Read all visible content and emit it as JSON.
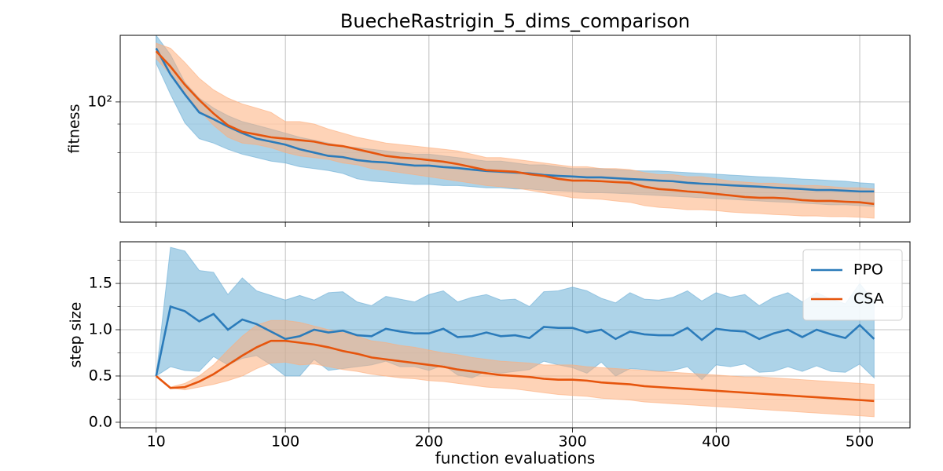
{
  "chart_data": [
    {
      "type": "line",
      "title": "BuecheRastrigin_5_dims_comparison",
      "ylabel": "fitness",
      "x": [
        10,
        20,
        30,
        40,
        50,
        60,
        70,
        80,
        90,
        100,
        110,
        120,
        130,
        140,
        150,
        160,
        170,
        180,
        190,
        200,
        210,
        220,
        230,
        240,
        250,
        260,
        270,
        280,
        290,
        300,
        310,
        320,
        330,
        340,
        350,
        360,
        370,
        380,
        390,
        400,
        410,
        420,
        430,
        440,
        450,
        460,
        470,
        480,
        490,
        500,
        510
      ],
      "xlim": [
        -15,
        535
      ],
      "xticks": [
        10,
        100,
        200,
        300,
        400,
        500
      ],
      "ylim": [
        29.7,
        196
      ],
      "log_y": true,
      "yticks": [
        {
          "value": 100,
          "label": "10²"
        }
      ],
      "yminorticks": [
        40,
        60,
        80
      ],
      "grid": true,
      "series": [
        {
          "color": "#2b7bba",
          "band_color": "#6aaed6",
          "values": [
            172,
            132,
            108,
            90,
            84,
            78,
            73,
            69,
            67,
            65,
            62,
            60,
            58,
            57.3,
            55.6,
            54.7,
            54.3,
            53.4,
            52.6,
            52.6,
            51.8,
            51.3,
            50.5,
            49.8,
            49.4,
            49,
            48.6,
            47.8,
            47.4,
            47.1,
            46.7,
            46.7,
            46.3,
            45.9,
            45.6,
            45.2,
            44.9,
            44.2,
            43.8,
            43.5,
            43.1,
            42.8,
            42.5,
            42.1,
            41.8,
            41.5,
            41.1,
            41.1,
            40.8,
            40.5,
            40.5
          ],
          "lower": [
            148,
            108,
            81,
            69,
            66,
            62,
            59,
            57,
            55,
            54,
            52,
            51,
            50,
            48.6,
            46,
            45,
            44.5,
            44,
            43.5,
            43.5,
            43,
            43,
            42.5,
            42,
            42,
            41.5,
            41.5,
            41,
            40.8,
            40.5,
            40,
            40,
            39.8,
            39.5,
            39.2,
            38.9,
            38.6,
            38.3,
            38,
            37.7,
            37.4,
            37.1,
            36.8,
            36.5,
            36.3,
            36,
            35.7,
            35.4,
            35.4,
            35.1,
            34.8
          ],
          "upper": [
            196,
            161,
            122,
            104,
            94,
            87,
            82,
            79,
            76,
            73,
            70,
            68,
            66,
            64,
            63,
            62,
            61,
            60,
            59,
            59,
            58,
            57,
            56,
            55,
            55,
            54,
            53,
            53,
            52,
            51,
            51,
            51,
            50.5,
            50,
            49.8,
            49.8,
            49.4,
            49,
            48.6,
            48.2,
            47.8,
            47.4,
            47,
            46.7,
            46.3,
            45.9,
            45.6,
            45.2,
            44.9,
            44.2,
            43.8
          ]
        },
        {
          "color": "#e6550d",
          "band_color": "#fdae7b",
          "values": [
            167,
            143,
            119,
            102,
            89,
            79,
            74,
            72,
            70,
            69,
            68,
            67,
            65,
            64,
            62,
            60,
            58,
            57,
            56.5,
            55.6,
            54.7,
            53.4,
            51.8,
            50.2,
            49.8,
            49.4,
            48.2,
            47.4,
            46,
            45.2,
            45.2,
            44.9,
            44.5,
            44.2,
            42.5,
            41.5,
            41.1,
            40.5,
            40.1,
            39.5,
            38.9,
            38.3,
            38,
            38,
            37.7,
            37.1,
            36.8,
            36.8,
            36.5,
            36.3,
            35.7
          ],
          "lower": [
            155,
            132,
            108,
            92,
            79,
            70,
            66,
            65,
            63,
            60,
            58,
            57,
            56,
            54,
            53,
            51,
            50,
            49,
            48,
            47,
            46,
            45,
            44,
            43,
            42.5,
            42,
            41,
            40,
            39,
            38,
            37.7,
            37.4,
            36.8,
            36.3,
            35.1,
            34.5,
            34.2,
            33.7,
            33.7,
            33.4,
            32.9,
            32.6,
            32.4,
            32.1,
            31.9,
            31.6,
            31.6,
            31.4,
            31.4,
            31.2,
            30.9
          ],
          "upper": [
            181,
            172,
            149,
            127,
            113,
            104,
            98,
            94,
            90,
            82,
            82,
            80,
            76,
            73,
            70,
            68,
            66,
            65,
            64,
            63,
            62,
            61,
            59,
            57,
            57,
            56,
            55,
            54,
            53,
            52,
            52,
            51,
            51,
            50.5,
            49,
            48,
            48,
            47,
            47,
            46,
            45,
            44.5,
            44,
            44,
            43.5,
            43,
            43,
            42.5,
            42,
            42,
            41.5
          ]
        }
      ]
    },
    {
      "type": "line",
      "ylabel": "step size",
      "xlabel": "function evaluations",
      "x": [
        10,
        20,
        30,
        40,
        50,
        60,
        70,
        80,
        90,
        100,
        110,
        120,
        130,
        140,
        150,
        160,
        170,
        180,
        190,
        200,
        210,
        220,
        230,
        240,
        250,
        260,
        270,
        280,
        290,
        300,
        310,
        320,
        330,
        340,
        350,
        360,
        370,
        380,
        390,
        400,
        410,
        420,
        430,
        440,
        450,
        460,
        470,
        480,
        490,
        500,
        510
      ],
      "xlim": [
        -15,
        535
      ],
      "xticks": [
        10,
        100,
        200,
        300,
        400,
        500
      ],
      "ylim": [
        -0.06,
        1.95
      ],
      "yticks": [
        {
          "value": 0,
          "label": "0.0"
        },
        {
          "value": 0.5,
          "label": "0.5"
        },
        {
          "value": 1,
          "label": "1.0"
        },
        {
          "value": 1.5,
          "label": "1.5"
        }
      ],
      "yminorticks": [
        0.25,
        0.75,
        1.25,
        1.75
      ],
      "grid": true,
      "legend": "upper right",
      "series": [
        {
          "name": "PPO",
          "color": "#2b7bba",
          "band_color": "#6aaed6",
          "values": [
            0.5,
            1.25,
            1.2,
            1.09,
            1.17,
            1.0,
            1.11,
            1.06,
            0.98,
            0.9,
            0.93,
            1.0,
            0.97,
            0.99,
            0.94,
            0.93,
            1.01,
            0.98,
            0.96,
            0.96,
            1.01,
            0.92,
            0.93,
            0.97,
            0.93,
            0.94,
            0.91,
            1.03,
            1.02,
            1.02,
            0.97,
            1.0,
            0.9,
            0.98,
            0.95,
            0.94,
            0.94,
            1.02,
            0.89,
            1.01,
            0.99,
            0.98,
            0.9,
            0.96,
            1.0,
            0.92,
            1.0,
            0.95,
            0.91,
            1.05,
            0.9
          ],
          "lower": [
            0.5,
            0.6,
            0.56,
            0.55,
            0.71,
            0.62,
            0.69,
            0.72,
            0.62,
            0.5,
            0.5,
            0.68,
            0.56,
            0.58,
            0.6,
            0.62,
            0.66,
            0.6,
            0.6,
            0.56,
            0.62,
            0.51,
            0.48,
            0.55,
            0.53,
            0.55,
            0.57,
            0.66,
            0.62,
            0.59,
            0.53,
            0.65,
            0.5,
            0.58,
            0.57,
            0.55,
            0.56,
            0.6,
            0.46,
            0.62,
            0.6,
            0.63,
            0.54,
            0.55,
            0.6,
            0.55,
            0.61,
            0.55,
            0.54,
            0.63,
            0.48
          ],
          "upper": [
            0.5,
            1.89,
            1.85,
            1.64,
            1.62,
            1.38,
            1.56,
            1.42,
            1.37,
            1.32,
            1.37,
            1.32,
            1.4,
            1.41,
            1.3,
            1.26,
            1.36,
            1.33,
            1.3,
            1.38,
            1.42,
            1.3,
            1.35,
            1.38,
            1.32,
            1.33,
            1.25,
            1.41,
            1.42,
            1.46,
            1.42,
            1.34,
            1.29,
            1.4,
            1.33,
            1.32,
            1.35,
            1.42,
            1.31,
            1.4,
            1.35,
            1.38,
            1.26,
            1.35,
            1.4,
            1.3,
            1.4,
            1.33,
            1.28,
            1.5,
            1.3
          ]
        },
        {
          "name": "CSA",
          "color": "#e6550d",
          "band_color": "#fdae7b",
          "values": [
            0.5,
            0.37,
            0.38,
            0.44,
            0.52,
            0.62,
            0.72,
            0.81,
            0.88,
            0.88,
            0.86,
            0.84,
            0.81,
            0.77,
            0.74,
            0.7,
            0.68,
            0.66,
            0.64,
            0.62,
            0.6,
            0.57,
            0.55,
            0.53,
            0.51,
            0.5,
            0.49,
            0.47,
            0.46,
            0.46,
            0.45,
            0.43,
            0.42,
            0.41,
            0.39,
            0.38,
            0.37,
            0.36,
            0.35,
            0.34,
            0.33,
            0.32,
            0.31,
            0.3,
            0.29,
            0.28,
            0.27,
            0.26,
            0.25,
            0.24,
            0.23
          ],
          "lower": [
            0.5,
            0.37,
            0.35,
            0.38,
            0.41,
            0.45,
            0.5,
            0.58,
            0.64,
            0.65,
            0.62,
            0.63,
            0.6,
            0.57,
            0.55,
            0.52,
            0.5,
            0.48,
            0.47,
            0.45,
            0.44,
            0.42,
            0.4,
            0.38,
            0.37,
            0.36,
            0.34,
            0.32,
            0.3,
            0.29,
            0.28,
            0.26,
            0.25,
            0.24,
            0.22,
            0.21,
            0.2,
            0.19,
            0.18,
            0.17,
            0.16,
            0.15,
            0.14,
            0.13,
            0.12,
            0.11,
            0.1,
            0.09,
            0.08,
            0.07,
            0.06
          ],
          "upper": [
            0.5,
            0.38,
            0.42,
            0.5,
            0.62,
            0.78,
            0.93,
            1.05,
            1.1,
            1.1,
            1.08,
            1.04,
            1.0,
            0.97,
            0.93,
            0.88,
            0.86,
            0.83,
            0.81,
            0.78,
            0.75,
            0.73,
            0.7,
            0.68,
            0.66,
            0.65,
            0.64,
            0.62,
            0.62,
            0.62,
            0.6,
            0.59,
            0.58,
            0.57,
            0.56,
            0.55,
            0.54,
            0.53,
            0.52,
            0.51,
            0.5,
            0.49,
            0.49,
            0.48,
            0.47,
            0.46,
            0.45,
            0.44,
            0.43,
            0.42,
            0.41
          ]
        }
      ]
    }
  ]
}
